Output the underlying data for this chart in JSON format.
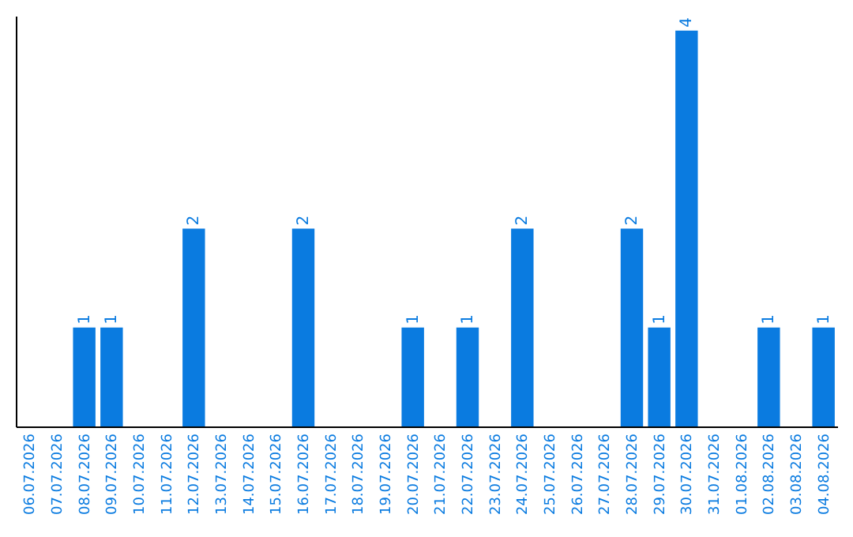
{
  "chart_data": {
    "type": "bar",
    "color": "#0a7be0",
    "ylim": [
      0,
      4.15
    ],
    "categories": [
      "06.07.2026",
      "07.07.2026",
      "08.07.2026",
      "09.07.2026",
      "10.07.2026",
      "11.07.2026",
      "12.07.2026",
      "13.07.2026",
      "14.07.2026",
      "15.07.2026",
      "16.07.2026",
      "17.07.2026",
      "18.07.2026",
      "19.07.2026",
      "20.07.2026",
      "21.07.2026",
      "22.07.2026",
      "23.07.2026",
      "24.07.2026",
      "25.07.2026",
      "26.07.2026",
      "27.07.2026",
      "28.07.2026",
      "29.07.2026",
      "30.07.2026",
      "31.07.2026",
      "01.08.2026",
      "02.08.2026",
      "03.08.2026",
      "04.08.2026"
    ],
    "values": [
      0,
      0,
      1,
      1,
      0,
      0,
      2,
      0,
      0,
      0,
      2,
      0,
      0,
      0,
      1,
      0,
      1,
      0,
      2,
      0,
      0,
      0,
      2,
      1,
      4,
      0,
      0,
      1,
      0,
      1
    ],
    "value_labels": [
      null,
      null,
      "1",
      "1",
      null,
      null,
      "2",
      null,
      null,
      null,
      "2",
      null,
      null,
      null,
      "1",
      null,
      "1",
      null,
      "2",
      null,
      null,
      null,
      "2",
      "1",
      "4",
      null,
      null,
      "1",
      null,
      "1"
    ]
  }
}
